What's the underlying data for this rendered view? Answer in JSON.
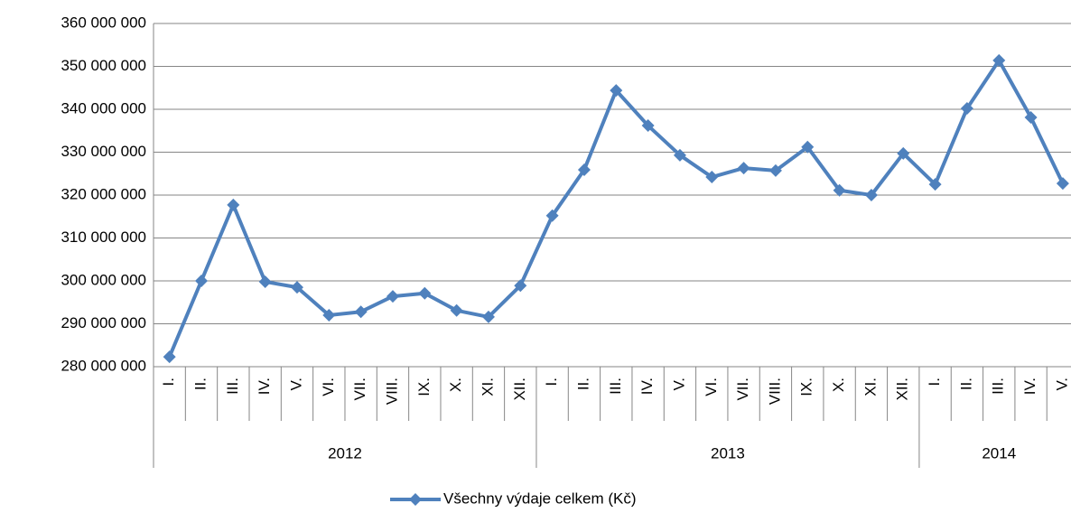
{
  "chart_data": {
    "type": "line",
    "category_groups": [
      {
        "name": "2012",
        "categories": [
          "I.",
          "II.",
          "III.",
          "IV.",
          "V.",
          "VI.",
          "VII.",
          "VIII.",
          "IX.",
          "X.",
          "XI.",
          "XII."
        ]
      },
      {
        "name": "2013",
        "categories": [
          "I.",
          "II.",
          "III.",
          "IV.",
          "V.",
          "VI.",
          "VII.",
          "VIII.",
          "IX.",
          "X.",
          "XI.",
          "XII."
        ]
      },
      {
        "name": "2014",
        "categories": [
          "I.",
          "II.",
          "III.",
          "IV.",
          "V."
        ]
      }
    ],
    "series": [
      {
        "name": "Všechny výdaje celkem (Kč)",
        "color": "#4f81bd",
        "values": [
          282300000,
          300000000,
          317700000,
          299800000,
          298500000,
          292000000,
          292800000,
          296400000,
          297100000,
          293100000,
          291600000,
          298900000,
          315200000,
          325900000,
          344400000,
          336200000,
          329300000,
          324200000,
          326300000,
          325700000,
          331200000,
          321100000,
          320000000,
          329700000,
          322500000,
          340200000,
          351400000,
          338100000,
          322700000
        ]
      }
    ],
    "ylim": [
      280000000,
      360000000
    ],
    "yticks": [
      {
        "value": 280000000,
        "label": "280 000 000"
      },
      {
        "value": 290000000,
        "label": "290 000 000"
      },
      {
        "value": 300000000,
        "label": "300 000 000"
      },
      {
        "value": 310000000,
        "label": "310 000 000"
      },
      {
        "value": 320000000,
        "label": "320 000 000"
      },
      {
        "value": 330000000,
        "label": "330 000 000"
      },
      {
        "value": 340000000,
        "label": "340 000 000"
      },
      {
        "value": 350000000,
        "label": "350 000 000"
      },
      {
        "value": 360000000,
        "label": "360 000 000"
      }
    ],
    "grid": true,
    "legend": "bottom"
  }
}
